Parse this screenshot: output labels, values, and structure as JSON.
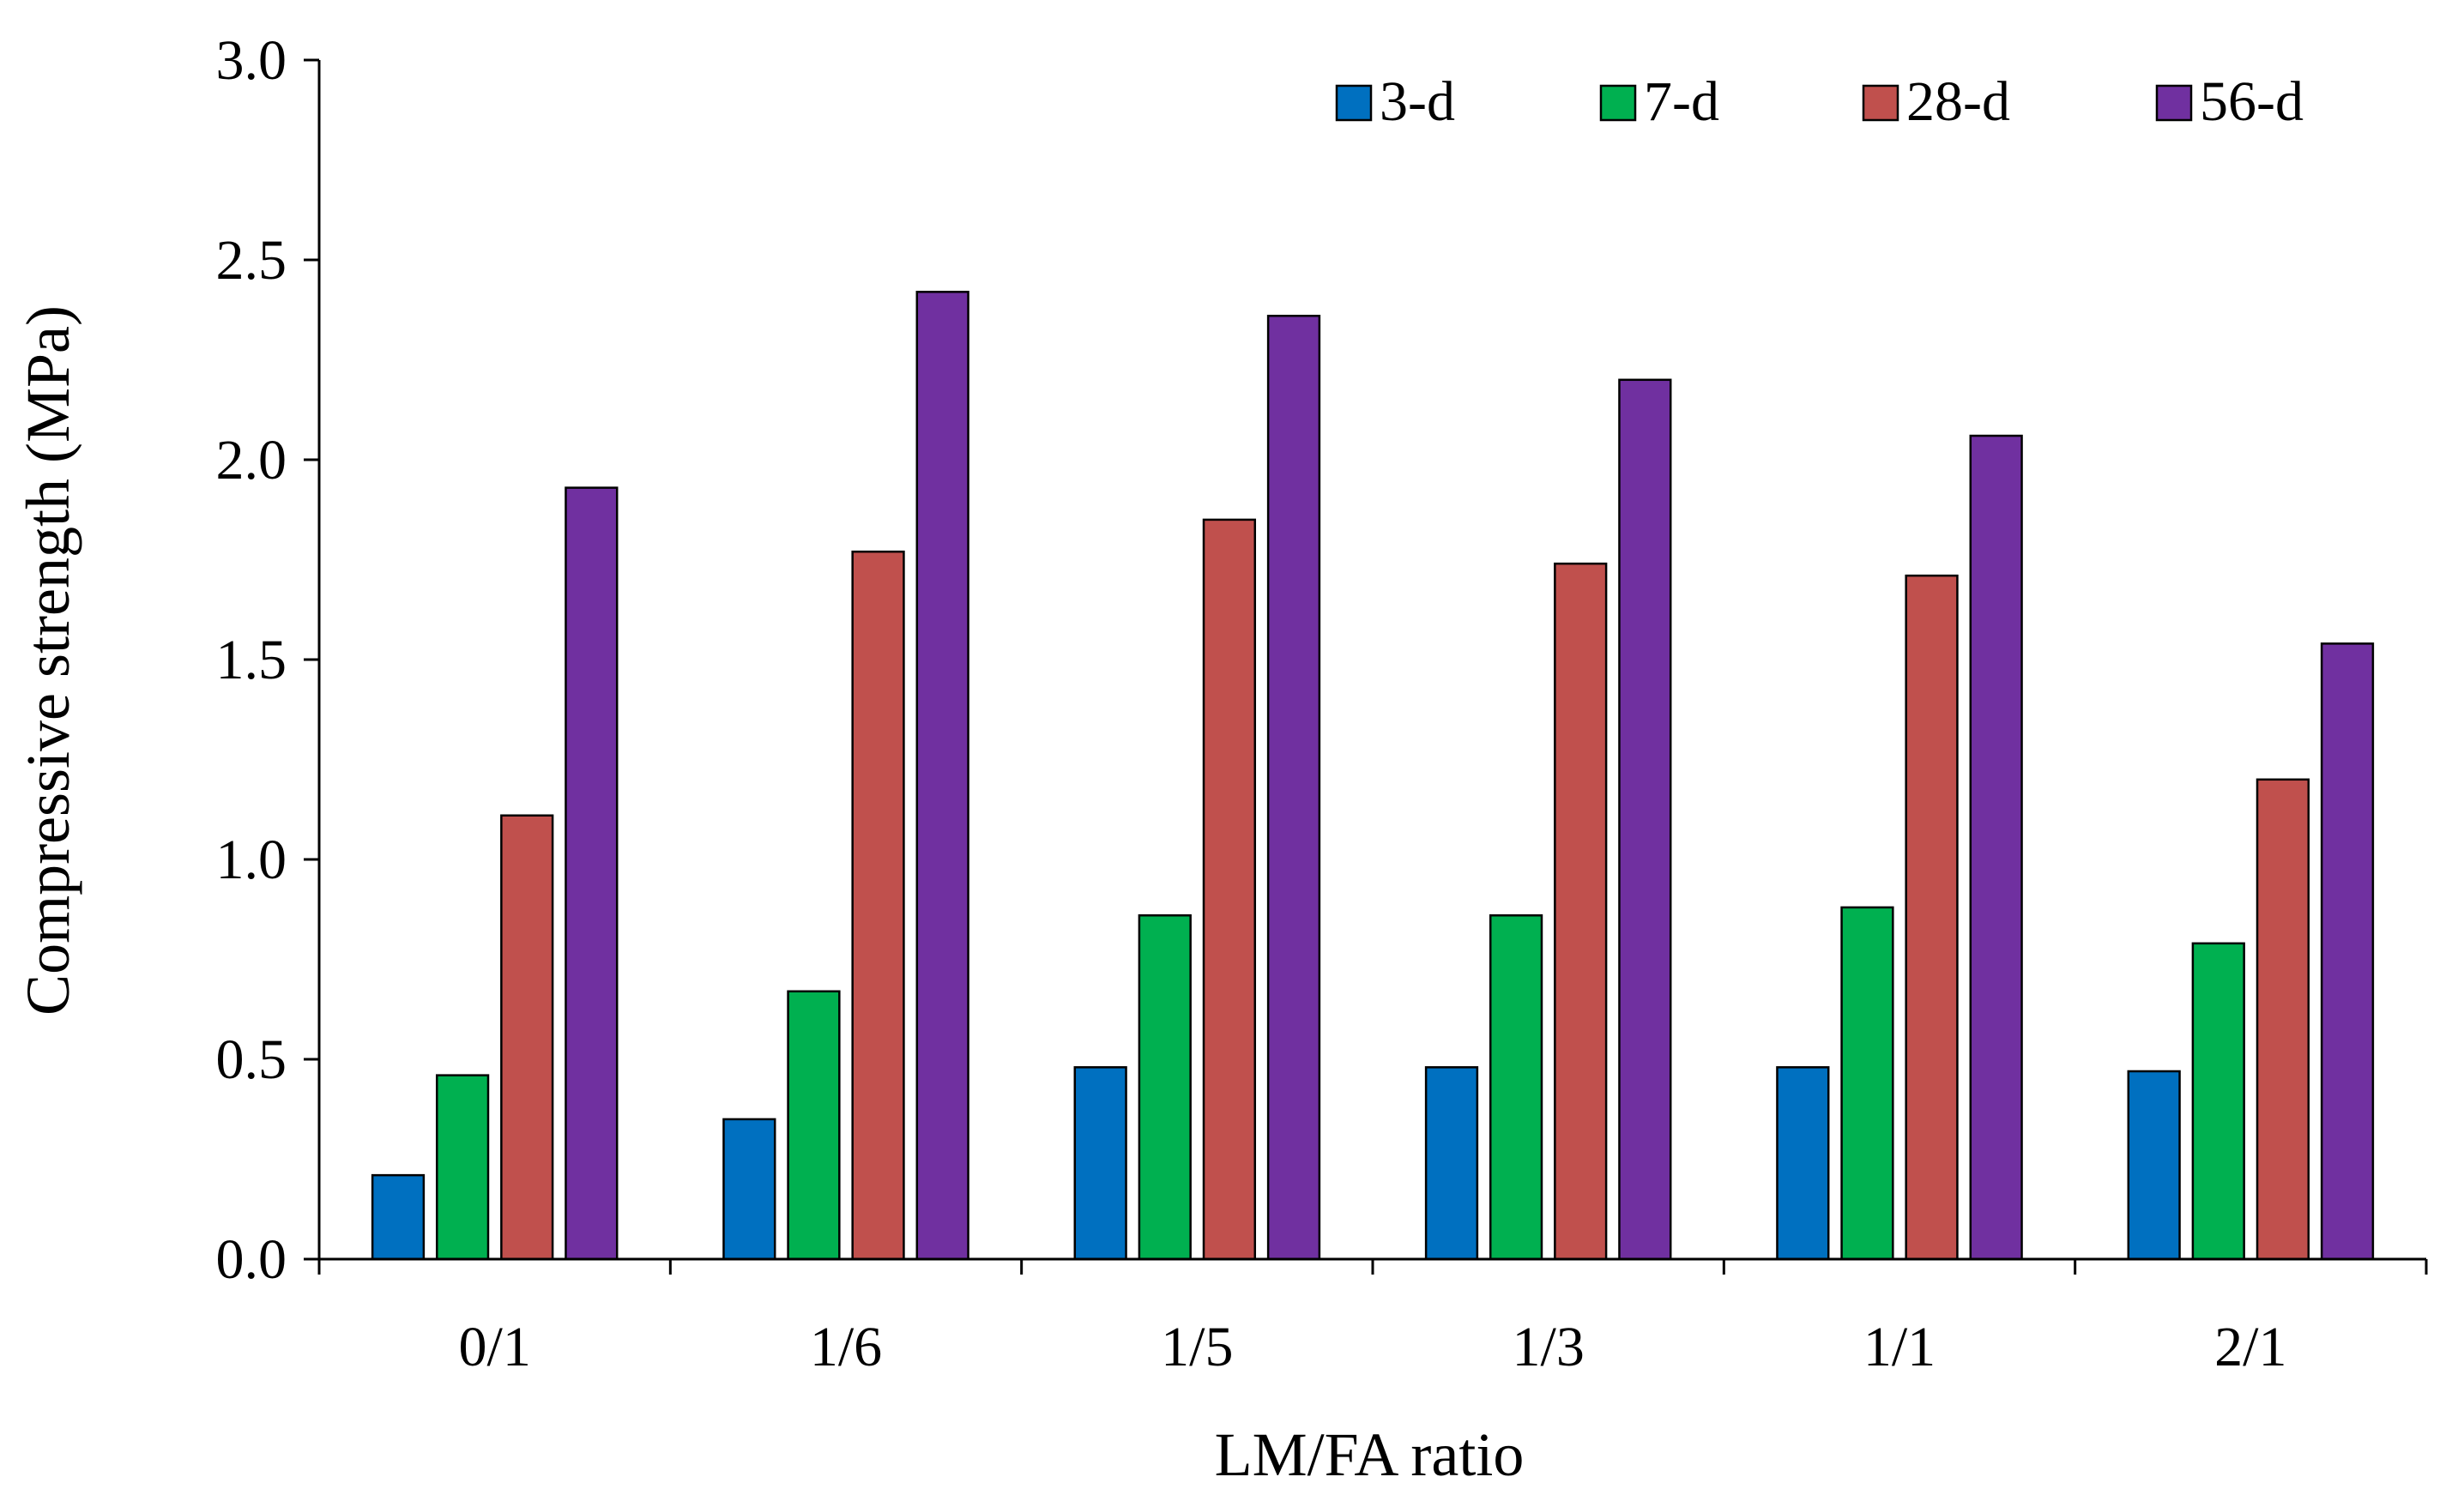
{
  "chart_data": {
    "type": "bar",
    "title": "",
    "xlabel": "LM/FA ratio",
    "ylabel": "Compressive strength (MPa)",
    "ylim": [
      0,
      3.0
    ],
    "yticks": [
      "0.0",
      "0.5",
      "1.0",
      "1.5",
      "2.0",
      "2.5",
      "3.0"
    ],
    "ytick_values": [
      0,
      0.5,
      1.0,
      1.5,
      2.0,
      2.5,
      3.0
    ],
    "categories": [
      "0/1",
      "1/6",
      "1/5",
      "1/3",
      "1/1",
      "2/1"
    ],
    "legend_position": "top-right",
    "grid": false,
    "series": [
      {
        "name": "3-d",
        "color": "#0070C0",
        "values": [
          0.21,
          0.35,
          0.48,
          0.48,
          0.48,
          0.47
        ]
      },
      {
        "name": "7-d",
        "color": "#00B050",
        "values": [
          0.46,
          0.67,
          0.86,
          0.86,
          0.88,
          0.79
        ]
      },
      {
        "name": "28-d",
        "color": "#C0504D",
        "values": [
          1.11,
          1.77,
          1.85,
          1.74,
          1.71,
          1.2
        ]
      },
      {
        "name": "56-d",
        "color": "#7030A0",
        "values": [
          1.93,
          2.42,
          2.36,
          2.2,
          2.06,
          1.54
        ]
      }
    ]
  }
}
